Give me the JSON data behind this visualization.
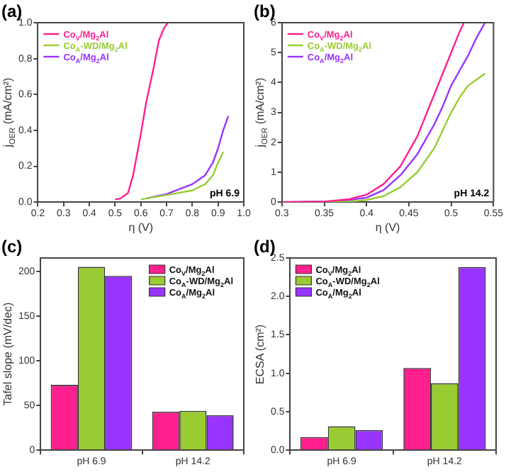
{
  "chart_data": [
    {
      "type": "line",
      "title": "(a)",
      "xlabel": "η (V)",
      "ylabel": "j$_{OER}$ (mA/cm²)",
      "xlim": [
        0.2,
        1.0
      ],
      "ylim": [
        0,
        1.0
      ],
      "xticks": [
        0.2,
        0.3,
        0.4,
        0.5,
        0.6,
        0.7,
        0.8,
        0.9,
        {
          "value": 1.0,
          "label": "1.0"
        }
      ],
      "yticks": [
        {
          "value": 0,
          "label": "0.0"
        },
        0.2,
        0.4,
        0.6,
        0.8,
        {
          "value": 1.0,
          "label": "1.0"
        }
      ],
      "legend": "top left",
      "grid": false,
      "annotations": [
        "pH 6.9"
      ],
      "series": [
        {
          "name": "Co$_{V}$/Mg$_{2}$Al",
          "color": "#ff1f8f",
          "x": [
            0.5,
            0.52,
            0.55,
            0.57,
            0.6,
            0.62,
            0.65,
            0.67,
            0.69,
            0.705
          ],
          "values": [
            0.015,
            0.02,
            0.05,
            0.15,
            0.38,
            0.55,
            0.75,
            0.9,
            0.97,
            1.0
          ]
        },
        {
          "name": "Co$_{A}$-WD/Mg$_{2}$Al",
          "color": "#99cc33",
          "x": [
            0.6,
            0.7,
            0.8,
            0.85,
            0.88,
            0.9,
            0.92
          ],
          "values": [
            0.015,
            0.04,
            0.065,
            0.1,
            0.15,
            0.22,
            0.28
          ]
        },
        {
          "name": "Co$_{A}$/Mg$_{2}$Al",
          "color": "#9933ff",
          "x": [
            0.62,
            0.7,
            0.8,
            0.85,
            0.88,
            0.9,
            0.92,
            0.94
          ],
          "values": [
            0.02,
            0.045,
            0.1,
            0.15,
            0.22,
            0.3,
            0.4,
            0.48
          ]
        }
      ]
    },
    {
      "type": "line",
      "title": "(b)",
      "xlabel": "η (V)",
      "ylabel": "j$_{OER}$ (mA/cm²)",
      "xlim": [
        0.3,
        0.55
      ],
      "ylim": [
        0,
        6
      ],
      "xticks": [
        0.3,
        0.35,
        0.4,
        0.45,
        0.5,
        0.55
      ],
      "yticks": [
        0,
        1,
        2,
        3,
        4,
        5,
        6
      ],
      "legend": "top left",
      "grid": false,
      "annotations": [
        "pH 14.2"
      ],
      "series": [
        {
          "name": "Co$_{V}$/Mg$_{2}$Al",
          "color": "#ff1f8f",
          "x": [
            0.3,
            0.35,
            0.38,
            0.4,
            0.42,
            0.44,
            0.46,
            0.48,
            0.49,
            0.5,
            0.51,
            0.515
          ],
          "values": [
            0,
            0.02,
            0.1,
            0.25,
            0.6,
            1.2,
            2.2,
            3.6,
            4.3,
            5.0,
            5.7,
            6.0
          ]
        },
        {
          "name": "Co$_{A}$-WD/Mg$_{2}$Al",
          "color": "#99cc33",
          "x": [
            0.3,
            0.38,
            0.4,
            0.42,
            0.44,
            0.46,
            0.48,
            0.49,
            0.5,
            0.51,
            0.52,
            0.53,
            0.54
          ],
          "values": [
            0,
            0.02,
            0.07,
            0.2,
            0.5,
            1.0,
            1.8,
            2.4,
            3.0,
            3.5,
            3.9,
            4.1,
            4.3
          ]
        },
        {
          "name": "Co$_{A}$/Mg$_{2}$Al",
          "color": "#9933ff",
          "x": [
            0.3,
            0.37,
            0.4,
            0.42,
            0.44,
            0.46,
            0.48,
            0.49,
            0.5,
            0.51,
            0.52,
            0.53,
            0.54
          ],
          "values": [
            0,
            0.03,
            0.15,
            0.4,
            0.9,
            1.6,
            2.6,
            3.2,
            3.9,
            4.4,
            4.9,
            5.5,
            6.0
          ]
        }
      ]
    },
    {
      "type": "bar",
      "title": "(c)",
      "ylabel": "Tafel slope (mV/dec)",
      "categories": [
        "pH 6.9",
        "pH 14.2"
      ],
      "ylim": [
        0,
        215
      ],
      "yticks": [
        0,
        50,
        100,
        150,
        200
      ],
      "legend": "top right",
      "grid": false,
      "series": [
        {
          "name": "Co$_{V}$/Mg$_{2}$Al",
          "color": "#ff1f8f",
          "values": [
            73,
            43
          ]
        },
        {
          "name": "Co$_{A}$-WD/Mg$_{2}$Al",
          "color": "#99cc33",
          "values": [
            205,
            44
          ]
        },
        {
          "name": "Co$_{A}$/Mg$_{2}$Al",
          "color": "#9933ff",
          "values": [
            195,
            39
          ]
        }
      ]
    },
    {
      "type": "bar",
      "title": "(d)",
      "ylabel": "ECSA (cm²)",
      "categories": [
        "pH 6.9",
        "pH 14.2"
      ],
      "ylim": [
        0,
        2.5
      ],
      "yticks": [
        {
          "value": 0,
          "label": "0.0"
        },
        0.5,
        {
          "value": 1.0,
          "label": "1.0"
        },
        1.5,
        {
          "value": 2.0,
          "label": "2.0"
        },
        2.5
      ],
      "legend": "top left",
      "grid": false,
      "series": [
        {
          "name": "Co$_{V}$/Mg$_{2}$Al",
          "color": "#ff1f8f",
          "values": [
            0.17,
            1.07
          ]
        },
        {
          "name": "Co$_{A}$-WD/Mg$_{2}$Al",
          "color": "#99cc33",
          "values": [
            0.31,
            0.87
          ]
        },
        {
          "name": "Co$_{A}$/Mg$_{2}$Al",
          "color": "#9933ff",
          "values": [
            0.26,
            2.38
          ]
        }
      ]
    }
  ]
}
